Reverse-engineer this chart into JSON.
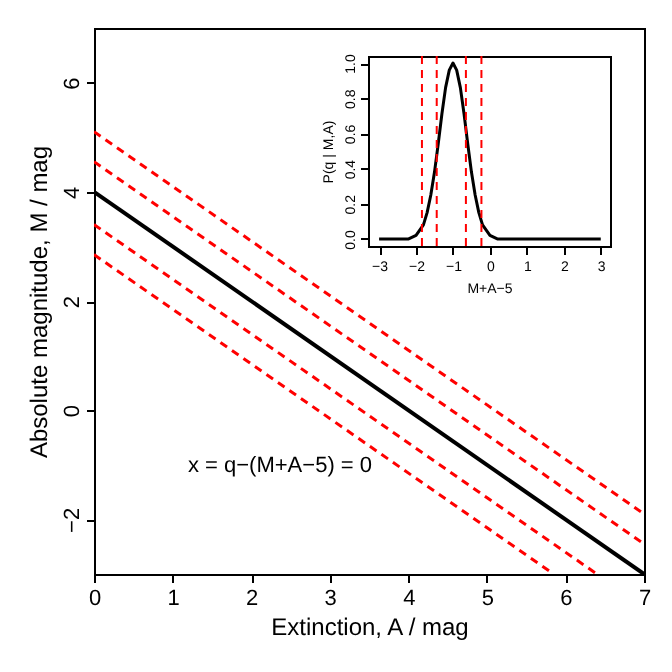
{
  "chart_data": [
    {
      "type": "line",
      "xlabel": "Extinction, A / mag",
      "ylabel": "Absolute magnitude, M / mag",
      "xlim": [
        0,
        7
      ],
      "ylim": [
        -3,
        7
      ],
      "xticks": [
        0,
        1,
        2,
        3,
        4,
        5,
        6,
        7
      ],
      "yticks": [
        -2,
        0,
        2,
        4,
        6
      ],
      "grid": false,
      "series": [
        {
          "color": "#000000",
          "line_style": "solid",
          "x": [
            0,
            7
          ],
          "values": [
            4,
            -3
          ]
        },
        {
          "color": "#ff0000",
          "line_style": "dashed",
          "x": [
            0,
            7
          ],
          "values": [
            5.1,
            -1.9
          ]
        },
        {
          "color": "#ff0000",
          "line_style": "dashed",
          "x": [
            0,
            7
          ],
          "values": [
            4.55,
            -2.45
          ]
        },
        {
          "color": "#ff0000",
          "line_style": "dashed",
          "x": [
            0,
            6.4
          ],
          "values": [
            3.4,
            -3
          ]
        },
        {
          "color": "#ff0000",
          "line_style": "dashed",
          "x": [
            0,
            5.85
          ],
          "values": [
            2.85,
            -3
          ]
        }
      ],
      "annotations": [
        "x = q−(M+A−5) = 0"
      ]
    },
    {
      "type": "line",
      "xlabel": "M+A−5",
      "ylabel": "P(q | M,A)",
      "xlim": [
        -3.3,
        3.25
      ],
      "ylim": [
        -0.04,
        1.04
      ],
      "xticks": [
        -3,
        -2,
        -1,
        0,
        1,
        2,
        3
      ],
      "yticks": [
        {
          "value": 0,
          "label": "0.0"
        },
        0.2,
        0.4,
        0.6,
        0.8,
        {
          "value": 1,
          "label": "1.0"
        }
      ],
      "grid": false,
      "series": [
        {
          "color": "#000000",
          "line_style": "solid",
          "x": [
            -3,
            -2.2,
            -2,
            -1.8,
            -1.7,
            -1.6,
            -1.5,
            -1.4,
            -1.3,
            -1.2,
            -1.1,
            -1,
            -0.9,
            -0.8,
            -0.7,
            -0.6,
            -0.5,
            -0.4,
            -0.3,
            -0.2,
            0,
            0.2,
            3
          ],
          "values": [
            0,
            0,
            0.02,
            0.08,
            0.15,
            0.25,
            0.38,
            0.54,
            0.71,
            0.86,
            0.96,
            1,
            0.96,
            0.86,
            0.71,
            0.54,
            0.38,
            0.25,
            0.15,
            0.08,
            0.02,
            0,
            0
          ]
        }
      ],
      "ref_lines": [
        {
          "axis": "x",
          "value": -1.84,
          "color": "#ff0000",
          "line_style": "dashed"
        },
        {
          "axis": "x",
          "value": -1.44,
          "color": "#ff0000",
          "line_style": "dashed"
        },
        {
          "axis": "x",
          "value": -0.65,
          "color": "#ff0000",
          "line_style": "dashed"
        },
        {
          "axis": "x",
          "value": -0.23,
          "color": "#ff0000",
          "line_style": "dashed"
        }
      ]
    }
  ]
}
